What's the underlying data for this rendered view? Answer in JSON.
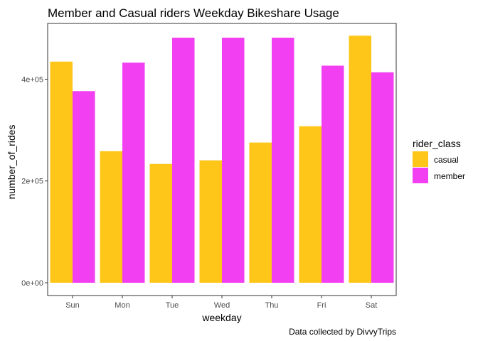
{
  "chart_data": {
    "type": "bar",
    "title": "Member and Casual riders Weekday Bikeshare Usage",
    "xlabel": "weekday",
    "ylabel": "number_of_rides",
    "caption": "Data collected by DivvyTrips",
    "categories": [
      "Sun",
      "Mon",
      "Tue",
      "Wed",
      "Thu",
      "Fri",
      "Sat"
    ],
    "series": [
      {
        "name": "casual",
        "color": "#FFC61A",
        "values": [
          475000,
          299000,
          274000,
          281000,
          316000,
          348000,
          526000
        ]
      },
      {
        "name": "member",
        "color": "#F23FF2",
        "values": [
          417000,
          473000,
          522000,
          522000,
          522000,
          467000,
          454000
        ]
      }
    ],
    "ylim": [
      0,
      550000
    ],
    "yticks": [
      0,
      200000,
      400000
    ],
    "ytick_labels": [
      "0e+00",
      "2e+05",
      "4e+05"
    ],
    "legend": {
      "title": "rider_class",
      "position": "right"
    },
    "grid": false
  }
}
